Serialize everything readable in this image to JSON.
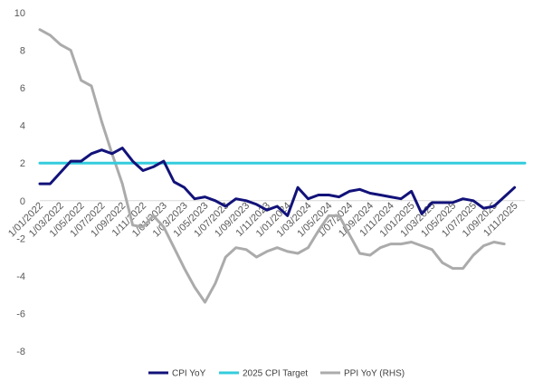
{
  "chart_data": {
    "type": "line",
    "title": "",
    "xlabel": "",
    "ylabel": "",
    "ylim": [
      -8,
      10
    ],
    "yticks": [
      10,
      8,
      6,
      4,
      2,
      0,
      -2,
      -4,
      -6,
      -8
    ],
    "grid": false,
    "legend_position": "bottom",
    "x": [
      "Jan-22",
      "Feb-22",
      "Mar-22",
      "Apr-22",
      "May-22",
      "Jun-22",
      "Jul-22",
      "Aug-22",
      "Sep-22",
      "Oct-22",
      "Nov-22",
      "Dec-22",
      "Jan-23",
      "Feb-23",
      "Mar-23",
      "Apr-23",
      "May-23",
      "Jun-23",
      "Jul-23",
      "Aug-23",
      "Sep-23",
      "Oct-23",
      "Nov-23",
      "Dec-23",
      "Jan-24",
      "Feb-24",
      "Mar-24",
      "Apr-24",
      "May-24",
      "Jun-24",
      "Jul-24",
      "Aug-24",
      "Sep-24",
      "Oct-24",
      "Nov-24",
      "Dec-24",
      "Jan-25",
      "Feb-25",
      "Mar-25",
      "Apr-25",
      "May-25",
      "Jun-25",
      "Jul-25",
      "Aug-25",
      "Sep-25",
      "Oct-25",
      "Nov-25",
      "Dec-25"
    ],
    "x_tick_labels": [
      "1/01/2022",
      "1/03/2022",
      "1/05/2022",
      "1/07/2022",
      "1/09/2022",
      "1/11/2022",
      "1/01/2023",
      "1/03/2023",
      "1/05/2023",
      "1/07/2023",
      "1/09/2023",
      "1/11/2023",
      "1/01/2024",
      "1/03/2024",
      "1/05/2024",
      "1/07/2024",
      "1/09/2024",
      "1/11/2024",
      "1/01/2025",
      "1/03/2025",
      "1/05/2025",
      "1/07/2025",
      "1/09/2025",
      "1/11/2025"
    ],
    "x_tick_index": [
      0,
      2,
      4,
      6,
      8,
      10,
      12,
      14,
      16,
      18,
      20,
      22,
      24,
      26,
      28,
      30,
      32,
      34,
      36,
      38,
      40,
      42,
      44,
      46
    ],
    "series": [
      {
        "name": "CPI YoY",
        "color": "#12127a",
        "values": [
          0.9,
          0.9,
          1.5,
          2.1,
          2.1,
          2.5,
          2.7,
          2.5,
          2.8,
          2.1,
          1.6,
          1.8,
          2.1,
          1.0,
          0.7,
          0.1,
          0.2,
          0.0,
          -0.3,
          0.1,
          0.0,
          -0.2,
          -0.5,
          -0.3,
          -0.8,
          0.7,
          0.1,
          0.3,
          0.3,
          0.2,
          0.5,
          0.6,
          0.4,
          0.3,
          0.2,
          0.1,
          0.5,
          -0.7,
          -0.1,
          -0.1,
          -0.1,
          0.1,
          0.0,
          -0.4,
          -0.3,
          0.2,
          0.7,
          null
        ]
      },
      {
        "name": "2025 CPI Target",
        "color": "#33ccdd",
        "values": [
          2,
          2,
          2,
          2,
          2,
          2,
          2,
          2,
          2,
          2,
          2,
          2,
          2,
          2,
          2,
          2,
          2,
          2,
          2,
          2,
          2,
          2,
          2,
          2,
          2,
          2,
          2,
          2,
          2,
          2,
          2,
          2,
          2,
          2,
          2,
          2,
          2,
          2,
          2,
          2,
          2,
          2,
          2,
          2,
          2,
          2,
          2,
          2
        ]
      },
      {
        "name": "PPI YoY (RHS)",
        "color": "#ababab",
        "values": [
          9.1,
          8.8,
          8.3,
          8.0,
          6.4,
          6.1,
          4.2,
          2.5,
          0.9,
          -1.3,
          -1.4,
          -0.8,
          -1.4,
          -2.5,
          -3.6,
          -4.6,
          -5.4,
          -4.4,
          -3.0,
          -2.5,
          -2.6,
          -3.0,
          -2.7,
          -2.5,
          -2.7,
          -2.8,
          -2.5,
          -1.6,
          -0.8,
          -0.8,
          -1.8,
          -2.8,
          -2.9,
          -2.5,
          -2.3,
          -2.3,
          -2.2,
          -2.4,
          -2.6,
          -3.3,
          -3.6,
          -3.6,
          -2.9,
          -2.4,
          -2.2,
          -2.3,
          null,
          null
        ]
      }
    ]
  }
}
